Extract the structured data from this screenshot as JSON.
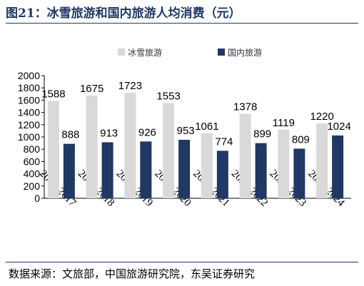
{
  "title": "图21：冰雪旅游和国内旅游人均消费（元）",
  "source": "数据来源：文旅部，中国旅游研究院，东吴证券研究",
  "colors": {
    "title": "#1f3864",
    "series_ice": "#d9d9d9",
    "series_domestic": "#1f3864"
  },
  "chart_data": {
    "type": "bar",
    "categories": [
      "2016-2017",
      "2017-2018",
      "2018-2019",
      "2019-2020",
      "2020-2021",
      "2021-2022",
      "2022-2023",
      "2023-2024"
    ],
    "series": [
      {
        "name": "冰雪旅游",
        "values": [
          1588,
          1675,
          1723,
          1553,
          1061,
          1378,
          1119,
          1220
        ]
      },
      {
        "name": "国内旅游",
        "values": [
          888,
          913,
          926,
          953,
          774,
          899,
          809,
          1024
        ]
      }
    ],
    "ylim": [
      0,
      2000
    ],
    "yticks": [
      0,
      200,
      400,
      600,
      800,
      1000,
      1200,
      1400,
      1600,
      1800,
      2000
    ],
    "grid": false,
    "legend_position": "top-center"
  }
}
